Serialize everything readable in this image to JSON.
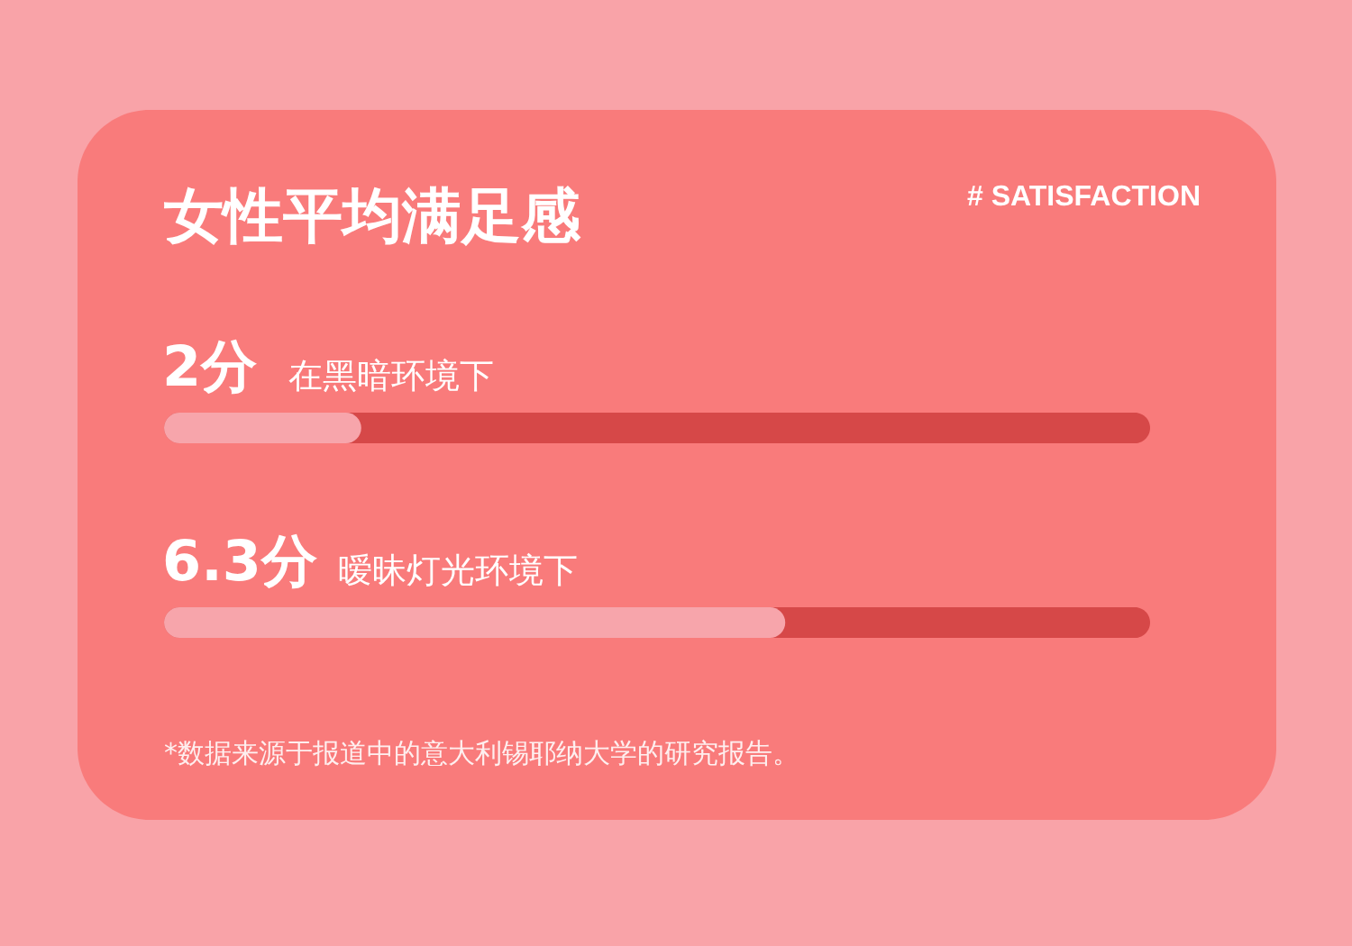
{
  "chart_data": {
    "type": "bar",
    "orientation": "horizontal",
    "title": "女性平均满足感",
    "subtitle": "# SATISFACTION",
    "categories": [
      "在黑暗环境下",
      "暧昧灯光环境下"
    ],
    "values": [
      2,
      6.3
    ],
    "color": "#f7a5ab",
    "value_labels": [
      "2分",
      "6.3分"
    ],
    "xlim": [
      0,
      10
    ],
    "bands": [
      {
        "axis": "x",
        "from": 0,
        "to": 10,
        "color": "#d64848"
      },
      {
        "axis": "x",
        "from": 0,
        "to": 10,
        "color": "#d64848"
      }
    ],
    "annotations": [
      "*数据来源于报道中的意大利锡耶纳大学的研究报告。"
    ]
  }
}
